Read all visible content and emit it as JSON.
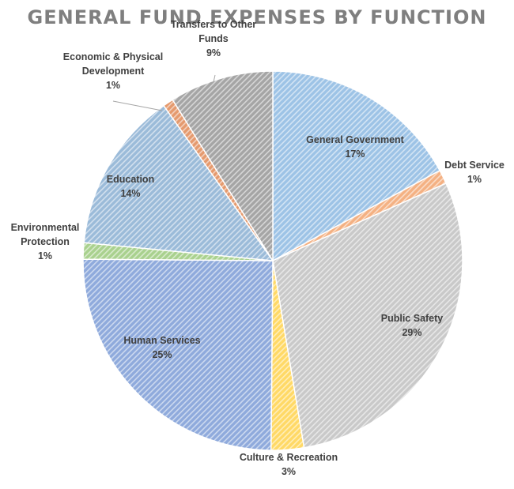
{
  "chart_data": {
    "type": "pie",
    "title": "GENERAL FUND EXPENSES BY FUNCTION",
    "start_angle_deg": 0,
    "direction": "clockwise",
    "legend": "none",
    "data_labels": "category name and percentage",
    "slices": [
      {
        "label": [
          "General Government"
        ],
        "percent_label": "17%",
        "value": 17.2,
        "color": "#9dc3e6"
      },
      {
        "label": [
          "Debt Service"
        ],
        "percent_label": "1%",
        "value": 1.2,
        "color": "#f4b183"
      },
      {
        "label": [
          "Public Safety"
        ],
        "percent_label": "29%",
        "value": 29.2,
        "color": "#c9c9c9"
      },
      {
        "label": [
          "Culture & Recreation"
        ],
        "percent_label": "3%",
        "value": 2.8,
        "color": "#ffd966"
      },
      {
        "label": [
          "Human Services"
        ],
        "percent_label": "25%",
        "value": 25.1,
        "color": "#8faadc"
      },
      {
        "label": [
          "Environmental",
          "Protection"
        ],
        "percent_label": "1%",
        "value": 1.4,
        "color": "#a9d18e"
      },
      {
        "label": [
          "Education"
        ],
        "percent_label": "14%",
        "value": 13.8,
        "color": "#9bbbd9"
      },
      {
        "label": [
          "Economic & Physical",
          "Development"
        ],
        "percent_label": "1%",
        "value": 0.9,
        "color": "#e59a6e"
      },
      {
        "label": [
          "Transfers to Other",
          "Funds"
        ],
        "percent_label": "9%",
        "value": 8.9,
        "color": "#a5a5a5"
      }
    ]
  }
}
